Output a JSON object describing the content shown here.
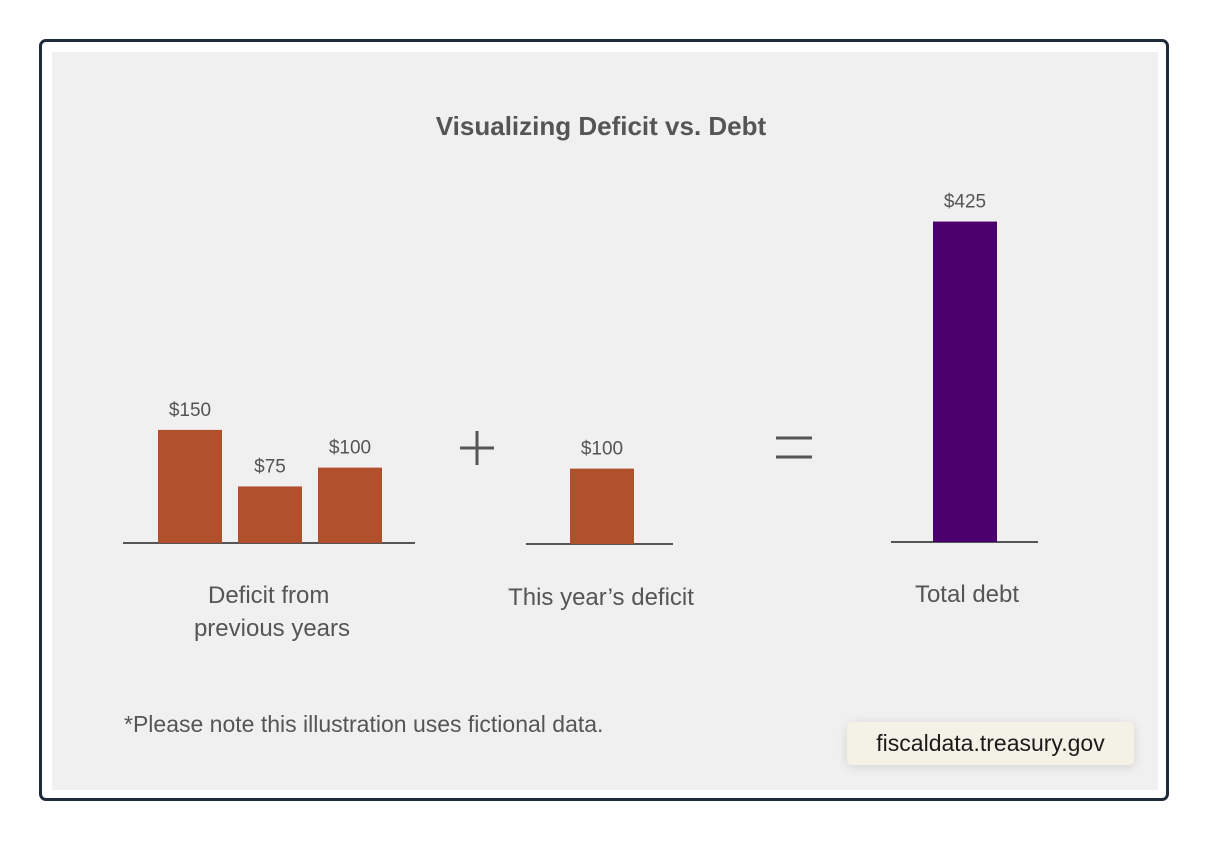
{
  "chart_data": {
    "type": "bar",
    "title": "Visualizing Deficit vs. Debt",
    "groups": [
      {
        "label_lines": [
          "Deficit from",
          "previous years"
        ],
        "color": "#b0502c",
        "bars": [
          {
            "value": 150,
            "label": "$150"
          },
          {
            "value": 75,
            "label": "$75"
          },
          {
            "value": 100,
            "label": "$100"
          }
        ]
      },
      {
        "label_lines": [
          "This year’s deficit"
        ],
        "color": "#b0502c",
        "bars": [
          {
            "value": 100,
            "label": "$100"
          }
        ]
      },
      {
        "label_lines": [
          "Total debt"
        ],
        "color": "#4b006e",
        "bars": [
          {
            "value": 425,
            "label": "$425"
          }
        ]
      }
    ],
    "operators": [
      "+",
      "="
    ],
    "note": "*Please note this illustration uses fictional data.",
    "grid": false,
    "legend": "none"
  },
  "source": "fiscaldata.treasury.gov",
  "colors": {
    "deficit": "#b0502c",
    "debt": "#4b006e",
    "text": "#555555",
    "baseline": "#555555"
  }
}
